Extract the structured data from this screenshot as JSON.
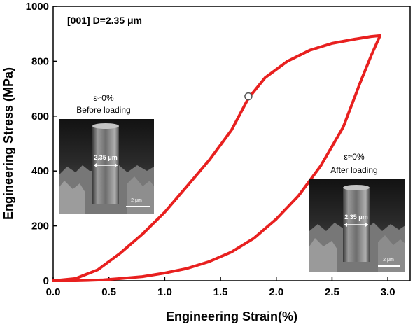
{
  "chart_data": {
    "type": "line",
    "title": "",
    "annotation": "[001] D=2.35 μm",
    "xlabel": "Engineering Strain(%)",
    "ylabel": "Engineering Stress (MPa)",
    "xlim": [
      0.0,
      3.2
    ],
    "ylim": [
      0,
      1000
    ],
    "xticks": [
      "0.0",
      "0.5",
      "1.0",
      "1.5",
      "2.0",
      "2.5",
      "3.0"
    ],
    "yticks": [
      "0",
      "200",
      "400",
      "600",
      "800",
      "1000"
    ],
    "grid": false,
    "series": [
      {
        "color": "#e8201f",
        "x": [
          0.0,
          0.2,
          0.4,
          0.6,
          0.8,
          1.0,
          1.2,
          1.4,
          1.6,
          1.75,
          1.9,
          2.1,
          2.3,
          2.5,
          2.7,
          2.85,
          2.93,
          2.85,
          2.75,
          2.6,
          2.4,
          2.2,
          2.0,
          1.8,
          1.6,
          1.4,
          1.2,
          1.0,
          0.8,
          0.6,
          0.45,
          0.3,
          0.2,
          0.1,
          0.0
        ],
        "y": [
          0,
          8,
          40,
          100,
          170,
          250,
          345,
          440,
          550,
          665,
          740,
          800,
          840,
          865,
          880,
          890,
          893,
          820,
          720,
          560,
          420,
          310,
          225,
          155,
          105,
          70,
          45,
          28,
          15,
          8,
          3,
          1,
          0,
          0,
          0
        ]
      }
    ],
    "marker": {
      "x": 1.75,
      "y": 672,
      "style": "open-circle"
    }
  },
  "insets": [
    {
      "caption_top": "ε≈0%",
      "caption_bottom": "Before loading",
      "diameter_label": "2.35 μm",
      "scale_label": "2 μm"
    },
    {
      "caption_top": "ε≈0%",
      "caption_bottom": "After loading",
      "diameter_label": "2.35 μm",
      "scale_label": "2 μm"
    }
  ]
}
